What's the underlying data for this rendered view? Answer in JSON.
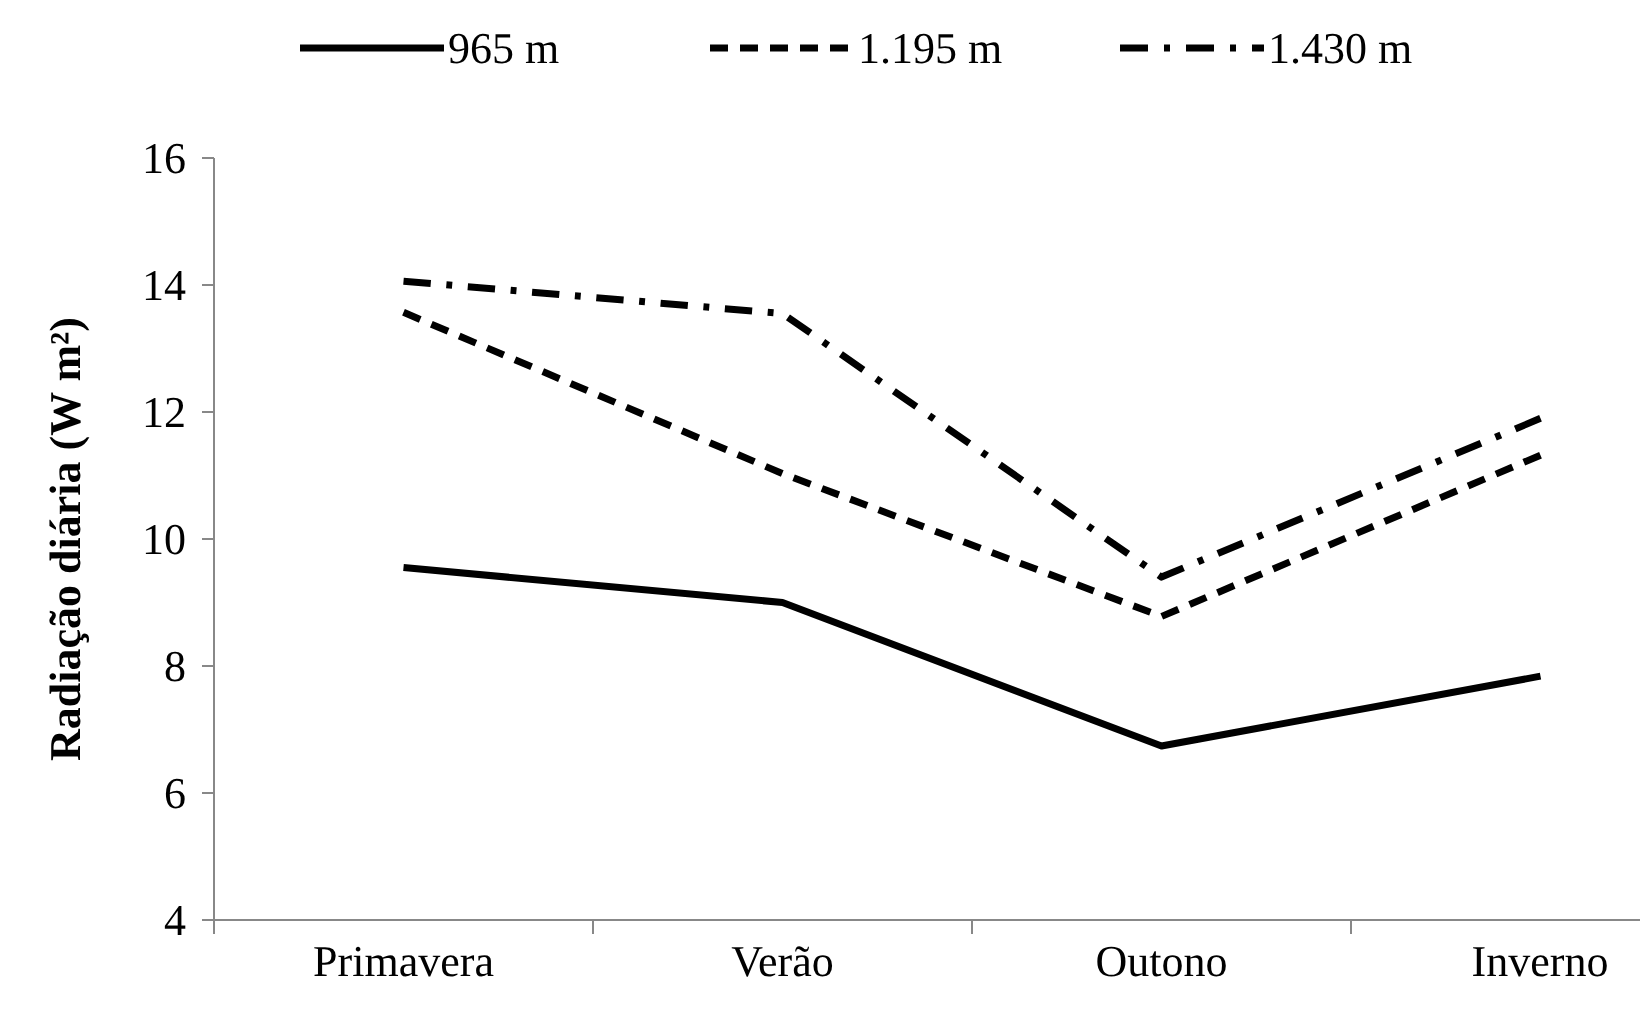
{
  "chart_data": {
    "type": "line",
    "ylabel": "Radiação diária (W m²)",
    "categories": [
      "Primavera",
      "Verão",
      "Outono",
      "Inverno"
    ],
    "ylim": [
      4,
      16
    ],
    "yticks": [
      4,
      6,
      8,
      10,
      12,
      14,
      16
    ],
    "grid": false,
    "legend": "top",
    "marker": "none",
    "series": [
      {
        "name": "965 m",
        "color": "#000000",
        "line_style": "solid",
        "values": [
          9.55,
          9.0,
          6.74,
          7.84
        ]
      },
      {
        "name": "1.195 m",
        "color": "#000000",
        "line_style": "dashed",
        "values": [
          13.57,
          11.03,
          8.78,
          11.32
        ]
      },
      {
        "name": "1.430 m",
        "color": "#000000",
        "line_style": "dashdot",
        "values": [
          14.06,
          13.55,
          9.4,
          11.9
        ]
      }
    ]
  }
}
